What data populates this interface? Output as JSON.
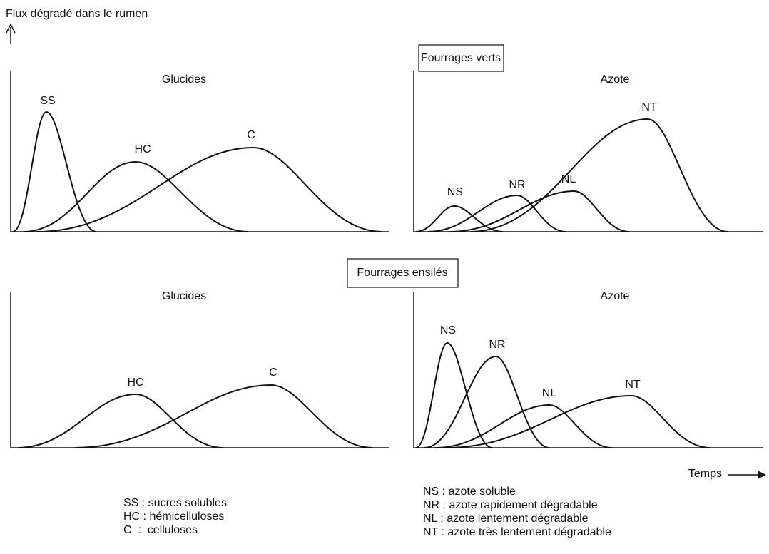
{
  "y_axis_label": "Flux dégradé dans le rumen",
  "x_axis_label": "Temps",
  "sections": [
    {
      "title": "Fourrages verts",
      "panels": [
        {
          "title": "Glucides",
          "curves": [
            "SS",
            "HC",
            "C"
          ]
        },
        {
          "title": "Azote",
          "curves": [
            "NS",
            "NR",
            "NL",
            "NT"
          ]
        }
      ]
    },
    {
      "title": "Fourrages ensilés",
      "panels": [
        {
          "title": "Glucides",
          "curves": [
            "HC",
            "C"
          ]
        },
        {
          "title": "Azote",
          "curves": [
            "NS",
            "NR",
            "NL",
            "NT"
          ]
        }
      ]
    }
  ],
  "legends": [
    [
      "SS : sucres solubles",
      "HC : hémicelluloses",
      "C  :  celluloses"
    ],
    [
      "NS : azote soluble",
      "NR : azote rapidement dégradable",
      "NL : azote lentement dégradable",
      "NT : azote très lentement dégradable"
    ]
  ]
}
